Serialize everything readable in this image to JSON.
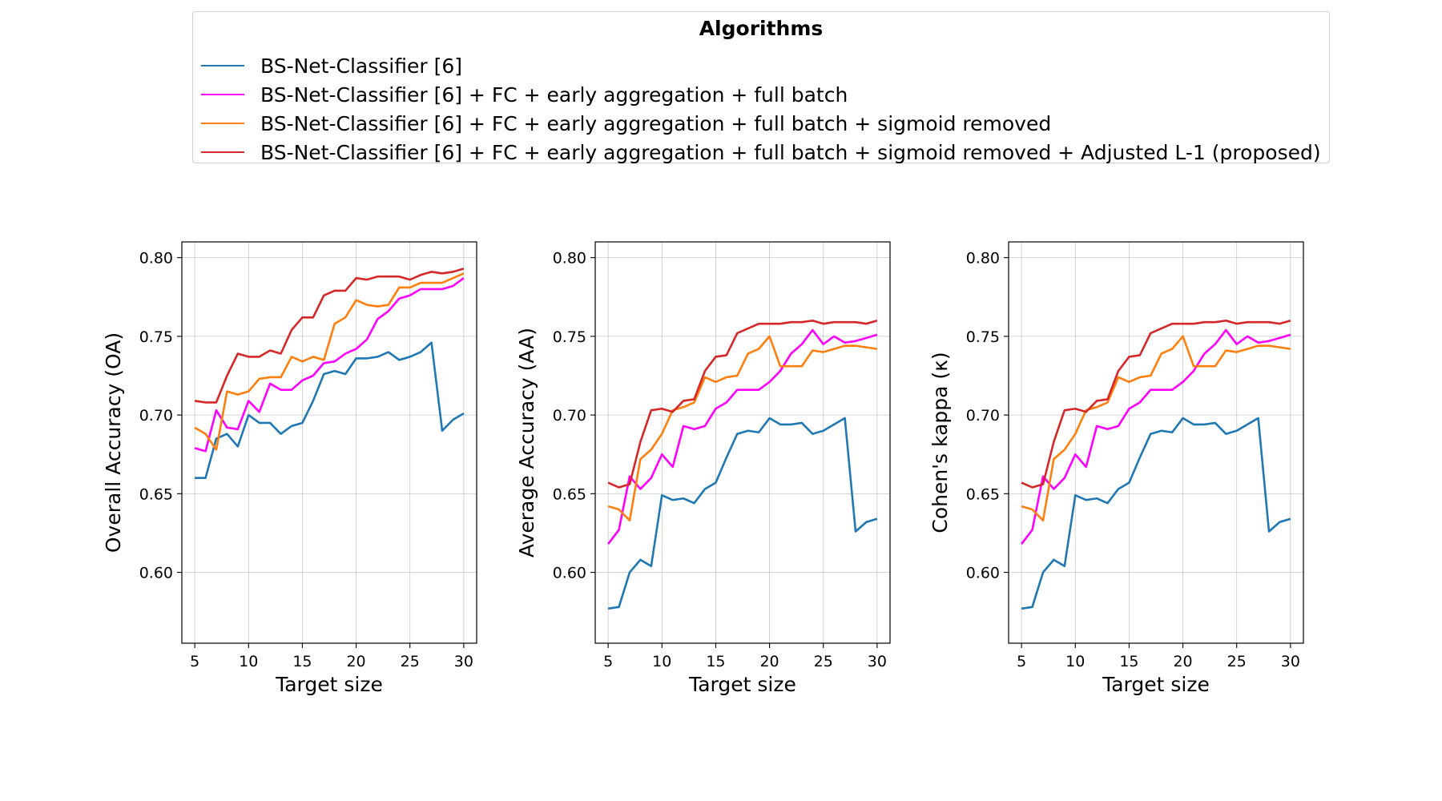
{
  "legend": {
    "title": "Algorithms",
    "entries": [
      {
        "label": "BS-Net-Classifier [6]",
        "color": "#1f77b4"
      },
      {
        "label": "BS-Net-Classifier [6] + FC + early aggregation + full batch",
        "color": "#ff00ff"
      },
      {
        "label": "BS-Net-Classifier [6] + FC + early aggregation + full batch + sigmoid removed",
        "color": "#ff7f0e"
      },
      {
        "label": "BS-Net-Classifier [6] + FC + early aggregation + full batch + sigmoid removed + Adjusted L-1 (proposed)",
        "color": "#d62728"
      }
    ]
  },
  "chart_data": [
    {
      "type": "line",
      "xlabel": "Target size",
      "ylabel": "Overall Accuracy (OA)",
      "xlim": [
        3.8,
        31.2
      ],
      "ylim": [
        0.555,
        0.81
      ],
      "xticks": [
        5,
        10,
        15,
        20,
        25,
        30
      ],
      "yticks": [
        0.6,
        0.65,
        0.7,
        0.75,
        0.8
      ],
      "grid": true,
      "x": [
        5,
        6,
        7,
        8,
        9,
        10,
        11,
        12,
        13,
        14,
        15,
        16,
        17,
        18,
        19,
        20,
        21,
        22,
        23,
        24,
        25,
        26,
        27,
        28,
        29,
        30
      ],
      "series": [
        {
          "name": "BS-Net-Classifier [6]",
          "color": "#1f77b4",
          "values": [
            0.66,
            0.66,
            0.685,
            0.688,
            0.68,
            0.7,
            0.695,
            0.695,
            0.688,
            0.693,
            0.695,
            0.709,
            0.726,
            0.728,
            0.726,
            0.736,
            0.736,
            0.737,
            0.74,
            0.735,
            0.737,
            0.74,
            0.746,
            0.69,
            0.697,
            0.701
          ]
        },
        {
          "name": "BS-Net-Classifier [6] + FC + early aggregation + full batch",
          "color": "#ff00ff",
          "values": [
            0.679,
            0.677,
            0.703,
            0.692,
            0.691,
            0.709,
            0.702,
            0.72,
            0.716,
            0.716,
            0.722,
            0.725,
            0.733,
            0.734,
            0.739,
            0.742,
            0.748,
            0.761,
            0.766,
            0.774,
            0.776,
            0.78,
            0.78,
            0.78,
            0.782,
            0.787
          ]
        },
        {
          "name": "BS-Net-Classifier [6] + FC + early aggregation + full batch + sigmoid removed",
          "color": "#ff7f0e",
          "values": [
            0.692,
            0.688,
            0.678,
            0.715,
            0.713,
            0.715,
            0.723,
            0.724,
            0.724,
            0.737,
            0.734,
            0.737,
            0.735,
            0.758,
            0.762,
            0.773,
            0.77,
            0.769,
            0.77,
            0.781,
            0.781,
            0.784,
            0.784,
            0.784,
            0.787,
            0.79
          ]
        },
        {
          "name": "BS-Net-Classifier [6] + FC + early aggregation + full batch + sigmoid removed + Adjusted L-1 (proposed)",
          "color": "#d62728",
          "values": [
            0.709,
            0.708,
            0.708,
            0.725,
            0.739,
            0.737,
            0.737,
            0.741,
            0.739,
            0.754,
            0.762,
            0.762,
            0.776,
            0.779,
            0.779,
            0.787,
            0.786,
            0.788,
            0.788,
            0.788,
            0.786,
            0.789,
            0.791,
            0.79,
            0.791,
            0.793
          ]
        }
      ]
    },
    {
      "type": "line",
      "xlabel": "Target size",
      "ylabel": "Average Accuracy (AA)",
      "xlim": [
        3.8,
        31.2
      ],
      "ylim": [
        0.555,
        0.81
      ],
      "xticks": [
        5,
        10,
        15,
        20,
        25,
        30
      ],
      "yticks": [
        0.6,
        0.65,
        0.7,
        0.75,
        0.8
      ],
      "grid": true,
      "x": [
        5,
        6,
        7,
        8,
        9,
        10,
        11,
        12,
        13,
        14,
        15,
        16,
        17,
        18,
        19,
        20,
        21,
        22,
        23,
        24,
        25,
        26,
        27,
        28,
        29,
        30
      ],
      "series": [
        {
          "name": "BS-Net-Classifier [6]",
          "color": "#1f77b4",
          "values": [
            0.577,
            0.578,
            0.6,
            0.608,
            0.604,
            0.649,
            0.646,
            0.647,
            0.644,
            0.653,
            0.657,
            0.673,
            0.688,
            0.69,
            0.689,
            0.698,
            0.694,
            0.694,
            0.695,
            0.688,
            0.69,
            0.694,
            0.698,
            0.626,
            0.632,
            0.634
          ]
        },
        {
          "name": "BS-Net-Classifier [6] + FC + early aggregation + full batch",
          "color": "#ff00ff",
          "values": [
            0.618,
            0.627,
            0.661,
            0.653,
            0.66,
            0.675,
            0.667,
            0.693,
            0.691,
            0.693,
            0.704,
            0.708,
            0.716,
            0.716,
            0.716,
            0.721,
            0.728,
            0.739,
            0.745,
            0.754,
            0.745,
            0.75,
            0.746,
            0.747,
            0.749,
            0.751
          ]
        },
        {
          "name": "BS-Net-Classifier [6] + FC + early aggregation + full batch + sigmoid removed",
          "color": "#ff7f0e",
          "values": [
            0.642,
            0.64,
            0.633,
            0.672,
            0.678,
            0.688,
            0.703,
            0.705,
            0.708,
            0.724,
            0.721,
            0.724,
            0.725,
            0.739,
            0.742,
            0.75,
            0.731,
            0.731,
            0.731,
            0.741,
            0.74,
            0.742,
            0.744,
            0.744,
            0.743,
            0.742
          ]
        },
        {
          "name": "BS-Net-Classifier [6] + FC + early aggregation + full batch + sigmoid removed + Adjusted L-1 (proposed)",
          "color": "#d62728",
          "values": [
            0.657,
            0.654,
            0.656,
            0.683,
            0.703,
            0.704,
            0.702,
            0.709,
            0.71,
            0.728,
            0.737,
            0.738,
            0.752,
            0.755,
            0.758,
            0.758,
            0.758,
            0.759,
            0.759,
            0.76,
            0.758,
            0.759,
            0.759,
            0.759,
            0.758,
            0.76
          ]
        }
      ]
    },
    {
      "type": "line",
      "xlabel": "Target size",
      "ylabel": "Cohen's kappa (κ)",
      "xlim": [
        3.8,
        31.2
      ],
      "ylim": [
        0.555,
        0.81
      ],
      "xticks": [
        5,
        10,
        15,
        20,
        25,
        30
      ],
      "yticks": [
        0.6,
        0.65,
        0.7,
        0.75,
        0.8
      ],
      "grid": true,
      "x": [
        5,
        6,
        7,
        8,
        9,
        10,
        11,
        12,
        13,
        14,
        15,
        16,
        17,
        18,
        19,
        20,
        21,
        22,
        23,
        24,
        25,
        26,
        27,
        28,
        29,
        30
      ],
      "series": [
        {
          "name": "BS-Net-Classifier [6]",
          "color": "#1f77b4",
          "values": [
            0.577,
            0.578,
            0.6,
            0.608,
            0.604,
            0.649,
            0.646,
            0.647,
            0.644,
            0.653,
            0.657,
            0.673,
            0.688,
            0.69,
            0.689,
            0.698,
            0.694,
            0.694,
            0.695,
            0.688,
            0.69,
            0.694,
            0.698,
            0.626,
            0.632,
            0.634
          ]
        },
        {
          "name": "BS-Net-Classifier [6] + FC + early aggregation + full batch",
          "color": "#ff00ff",
          "values": [
            0.618,
            0.627,
            0.661,
            0.653,
            0.66,
            0.675,
            0.667,
            0.693,
            0.691,
            0.693,
            0.704,
            0.708,
            0.716,
            0.716,
            0.716,
            0.721,
            0.728,
            0.739,
            0.745,
            0.754,
            0.745,
            0.75,
            0.746,
            0.747,
            0.749,
            0.751
          ]
        },
        {
          "name": "BS-Net-Classifier [6] + FC + early aggregation + full batch + sigmoid removed",
          "color": "#ff7f0e",
          "values": [
            0.642,
            0.64,
            0.633,
            0.672,
            0.678,
            0.688,
            0.703,
            0.705,
            0.708,
            0.724,
            0.721,
            0.724,
            0.725,
            0.739,
            0.742,
            0.75,
            0.731,
            0.731,
            0.731,
            0.741,
            0.74,
            0.742,
            0.744,
            0.744,
            0.743,
            0.742
          ]
        },
        {
          "name": "BS-Net-Classifier [6] + FC + early aggregation + full batch + sigmoid removed + Adjusted L-1 (proposed)",
          "color": "#d62728",
          "values": [
            0.657,
            0.654,
            0.656,
            0.683,
            0.703,
            0.704,
            0.702,
            0.709,
            0.71,
            0.728,
            0.737,
            0.738,
            0.752,
            0.755,
            0.758,
            0.758,
            0.758,
            0.759,
            0.759,
            0.76,
            0.758,
            0.759,
            0.759,
            0.759,
            0.758,
            0.76
          ]
        }
      ]
    }
  ]
}
